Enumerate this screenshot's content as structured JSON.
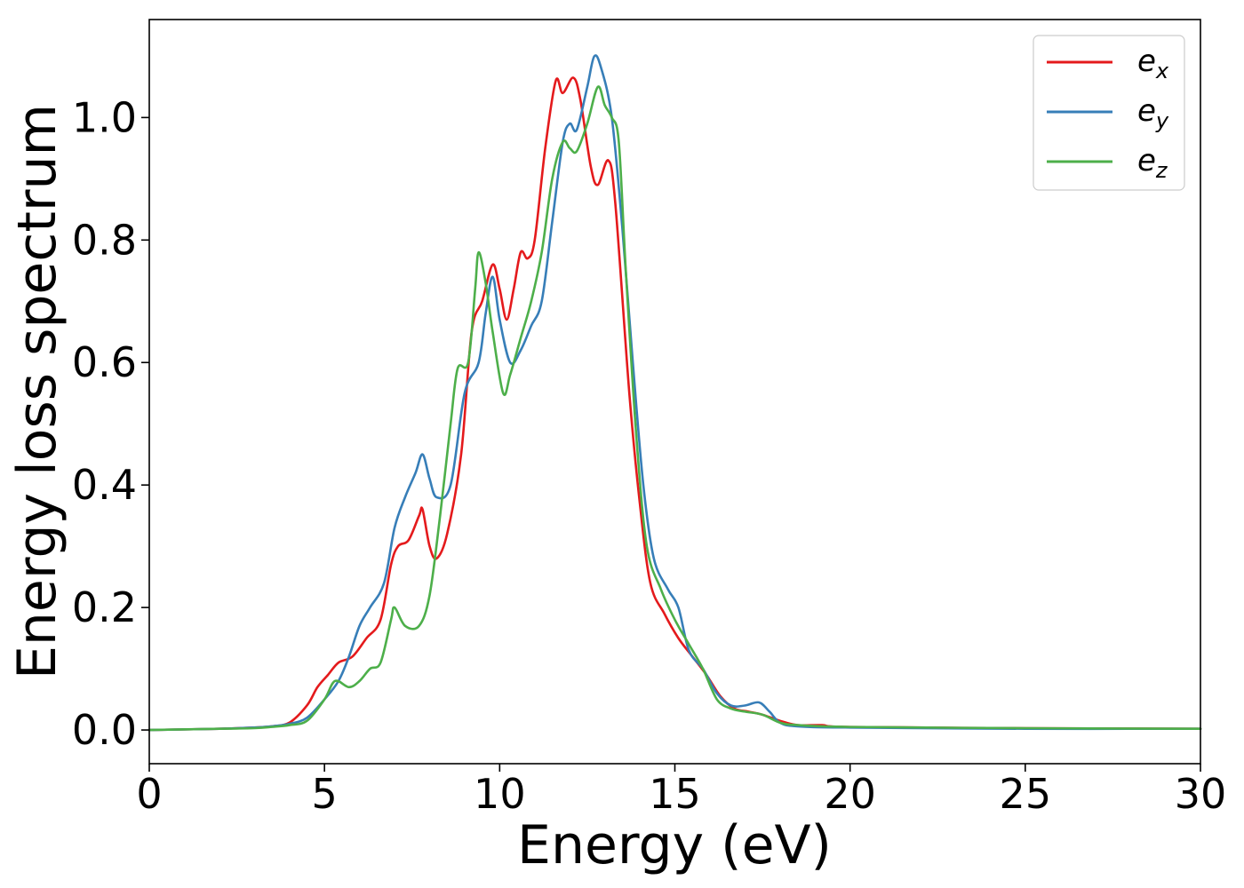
{
  "chart_data": {
    "type": "line",
    "xlabel": "Energy (eV)",
    "ylabel": "Energy loss spectrum",
    "xlim": [
      0,
      30
    ],
    "ylim": [
      -0.055,
      1.16
    ],
    "xticks": [
      0,
      5,
      10,
      15,
      20,
      25,
      30
    ],
    "xtick_labels": [
      "0",
      "5",
      "10",
      "15",
      "20",
      "25",
      "30"
    ],
    "yticks": [
      0.0,
      0.2,
      0.4,
      0.6,
      0.8,
      1.0
    ],
    "ytick_labels": [
      "0.0",
      "0.2",
      "0.4",
      "0.6",
      "0.8",
      "1.0"
    ],
    "grid": false,
    "legend_position": "top-right",
    "series": [
      {
        "name": "e_x",
        "label_base": "e",
        "label_sub": "x",
        "color": "#e41a1c",
        "points": [
          [
            0,
            0
          ],
          [
            2,
            0.002
          ],
          [
            3,
            0.004
          ],
          [
            3.5,
            0.006
          ],
          [
            4,
            0.012
          ],
          [
            4.5,
            0.04
          ],
          [
            4.8,
            0.07
          ],
          [
            5.1,
            0.09
          ],
          [
            5.4,
            0.11
          ],
          [
            5.8,
            0.12
          ],
          [
            6.2,
            0.15
          ],
          [
            6.6,
            0.18
          ],
          [
            6.9,
            0.27
          ],
          [
            7.1,
            0.3
          ],
          [
            7.4,
            0.31
          ],
          [
            7.7,
            0.35
          ],
          [
            7.8,
            0.36
          ],
          [
            8.0,
            0.3
          ],
          [
            8.2,
            0.28
          ],
          [
            8.5,
            0.32
          ],
          [
            8.9,
            0.45
          ],
          [
            9.2,
            0.65
          ],
          [
            9.5,
            0.7
          ],
          [
            9.8,
            0.76
          ],
          [
            10.0,
            0.72
          ],
          [
            10.2,
            0.67
          ],
          [
            10.4,
            0.72
          ],
          [
            10.6,
            0.78
          ],
          [
            10.8,
            0.77
          ],
          [
            11.0,
            0.8
          ],
          [
            11.3,
            0.95
          ],
          [
            11.6,
            1.06
          ],
          [
            11.8,
            1.04
          ],
          [
            12.1,
            1.065
          ],
          [
            12.3,
            1.03
          ],
          [
            12.6,
            0.92
          ],
          [
            12.8,
            0.89
          ],
          [
            13.1,
            0.93
          ],
          [
            13.3,
            0.86
          ],
          [
            13.7,
            0.55
          ],
          [
            14.0,
            0.37
          ],
          [
            14.3,
            0.24
          ],
          [
            14.7,
            0.19
          ],
          [
            15.1,
            0.15
          ],
          [
            15.5,
            0.12
          ],
          [
            15.9,
            0.09
          ],
          [
            16.3,
            0.055
          ],
          [
            16.7,
            0.035
          ],
          [
            17.1,
            0.03
          ],
          [
            17.5,
            0.025
          ],
          [
            18.0,
            0.015
          ],
          [
            18.5,
            0.008
          ],
          [
            19.2,
            0.008
          ],
          [
            20,
            0.005
          ],
          [
            25,
            0.003
          ],
          [
            30,
            0.002
          ]
        ]
      },
      {
        "name": "e_y",
        "label_base": "e",
        "label_sub": "y",
        "color": "#377eb8",
        "points": [
          [
            0,
            0
          ],
          [
            2,
            0.002
          ],
          [
            3,
            0.004
          ],
          [
            3.5,
            0.006
          ],
          [
            4,
            0.01
          ],
          [
            4.5,
            0.02
          ],
          [
            5.0,
            0.05
          ],
          [
            5.4,
            0.08
          ],
          [
            5.7,
            0.12
          ],
          [
            6.0,
            0.17
          ],
          [
            6.3,
            0.2
          ],
          [
            6.7,
            0.24
          ],
          [
            7.0,
            0.33
          ],
          [
            7.3,
            0.38
          ],
          [
            7.6,
            0.42
          ],
          [
            7.8,
            0.45
          ],
          [
            8.0,
            0.41
          ],
          [
            8.2,
            0.38
          ],
          [
            8.6,
            0.4
          ],
          [
            9.0,
            0.55
          ],
          [
            9.4,
            0.6
          ],
          [
            9.6,
            0.68
          ],
          [
            9.8,
            0.74
          ],
          [
            10.0,
            0.67
          ],
          [
            10.3,
            0.6
          ],
          [
            10.6,
            0.62
          ],
          [
            10.9,
            0.66
          ],
          [
            11.2,
            0.7
          ],
          [
            11.5,
            0.83
          ],
          [
            11.8,
            0.96
          ],
          [
            12.0,
            0.99
          ],
          [
            12.2,
            0.98
          ],
          [
            12.5,
            1.05
          ],
          [
            12.7,
            1.1
          ],
          [
            12.9,
            1.08
          ],
          [
            13.2,
            1.0
          ],
          [
            13.5,
            0.82
          ],
          [
            13.8,
            0.6
          ],
          [
            14.1,
            0.4
          ],
          [
            14.4,
            0.28
          ],
          [
            14.8,
            0.23
          ],
          [
            15.1,
            0.2
          ],
          [
            15.4,
            0.13
          ],
          [
            15.8,
            0.1
          ],
          [
            16.2,
            0.06
          ],
          [
            16.6,
            0.04
          ],
          [
            17.0,
            0.04
          ],
          [
            17.4,
            0.045
          ],
          [
            17.7,
            0.03
          ],
          [
            18.0,
            0.012
          ],
          [
            18.5,
            0.006
          ],
          [
            20,
            0.004
          ],
          [
            25,
            0.002
          ],
          [
            30,
            0.002
          ]
        ]
      },
      {
        "name": "e_z",
        "label_base": "e",
        "label_sub": "z",
        "color": "#4daf4a",
        "points": [
          [
            0,
            0
          ],
          [
            2,
            0.002
          ],
          [
            3,
            0.003
          ],
          [
            3.5,
            0.005
          ],
          [
            4,
            0.008
          ],
          [
            4.5,
            0.015
          ],
          [
            5.0,
            0.05
          ],
          [
            5.3,
            0.08
          ],
          [
            5.7,
            0.07
          ],
          [
            6.0,
            0.08
          ],
          [
            6.3,
            0.1
          ],
          [
            6.6,
            0.11
          ],
          [
            6.9,
            0.18
          ],
          [
            7.0,
            0.2
          ],
          [
            7.3,
            0.17
          ],
          [
            7.7,
            0.17
          ],
          [
            8.0,
            0.22
          ],
          [
            8.3,
            0.35
          ],
          [
            8.6,
            0.5
          ],
          [
            8.8,
            0.59
          ],
          [
            9.1,
            0.6
          ],
          [
            9.3,
            0.72
          ],
          [
            9.4,
            0.78
          ],
          [
            9.6,
            0.73
          ],
          [
            9.8,
            0.65
          ],
          [
            10.1,
            0.55
          ],
          [
            10.3,
            0.58
          ],
          [
            10.6,
            0.64
          ],
          [
            10.9,
            0.7
          ],
          [
            11.2,
            0.78
          ],
          [
            11.5,
            0.9
          ],
          [
            11.8,
            0.96
          ],
          [
            12.0,
            0.95
          ],
          [
            12.2,
            0.945
          ],
          [
            12.5,
            0.99
          ],
          [
            12.8,
            1.05
          ],
          [
            13.0,
            1.02
          ],
          [
            13.2,
            1.0
          ],
          [
            13.4,
            0.96
          ],
          [
            13.6,
            0.75
          ],
          [
            13.9,
            0.48
          ],
          [
            14.2,
            0.3
          ],
          [
            14.6,
            0.23
          ],
          [
            15.0,
            0.18
          ],
          [
            15.4,
            0.14
          ],
          [
            15.8,
            0.1
          ],
          [
            16.2,
            0.05
          ],
          [
            16.6,
            0.035
          ],
          [
            17.0,
            0.03
          ],
          [
            17.5,
            0.025
          ],
          [
            18.0,
            0.012
          ],
          [
            18.5,
            0.008
          ],
          [
            20,
            0.005
          ],
          [
            25,
            0.003
          ],
          [
            30,
            0.002
          ]
        ]
      }
    ]
  }
}
